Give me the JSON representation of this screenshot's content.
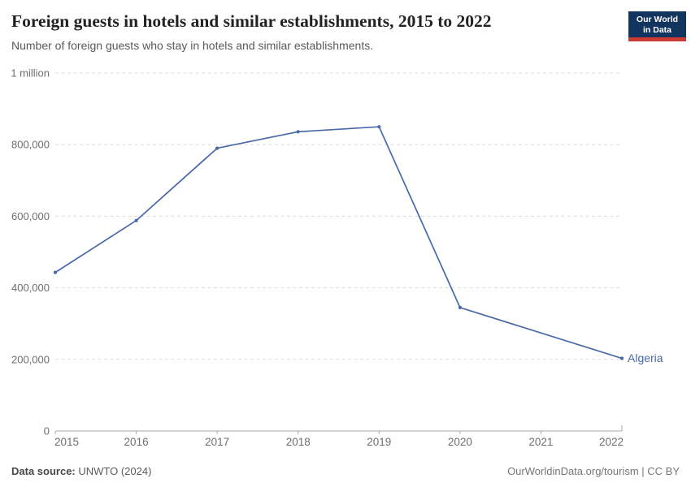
{
  "header": {
    "title": "Foreign guests in hotels and similar establishments, 2015 to 2022",
    "subtitle": "Number of foreign guests who stay in hotels and similar establishments.",
    "logo": {
      "line1": "Our World",
      "line2": "in Data",
      "bg_color": "#12355f",
      "bar_color": "#cc3b33"
    }
  },
  "chart_data": {
    "type": "line",
    "title": "Foreign guests in hotels and similar establishments, 2015 to 2022",
    "xlabel": "",
    "ylabel": "",
    "xlim": [
      2015,
      2022
    ],
    "ylim": [
      0,
      1000000
    ],
    "grid": "horizontal-dashed",
    "grid_color": "#dcdcdc",
    "axis_color": "#a8a8a8",
    "tick_label_color": "#6e6e6e",
    "legend_position": "line-end-label",
    "x_ticks": [
      "2015",
      "2016",
      "2017",
      "2018",
      "2019",
      "2020",
      "2021",
      "2022"
    ],
    "y_ticks": [
      {
        "value": 0,
        "label": "0"
      },
      {
        "value": 200000,
        "label": "200,000"
      },
      {
        "value": 400000,
        "label": "400,000"
      },
      {
        "value": 600000,
        "label": "600,000"
      },
      {
        "value": 800000,
        "label": "800,000"
      },
      {
        "value": 1000000,
        "label": "1 million"
      }
    ],
    "series": [
      {
        "name": "Algeria",
        "color": "#4868a8",
        "points": [
          [
            2015,
            443000
          ],
          [
            2016,
            588000
          ],
          [
            2017,
            790000
          ],
          [
            2018,
            836000
          ],
          [
            2019,
            850000
          ],
          [
            2020,
            345000
          ],
          [
            2022,
            203000
          ]
        ]
      }
    ]
  },
  "footer": {
    "source_label": "Data source:",
    "source_value": " UNWTO (2024)",
    "credit": "OurWorldinData.org/tourism | CC BY"
  }
}
